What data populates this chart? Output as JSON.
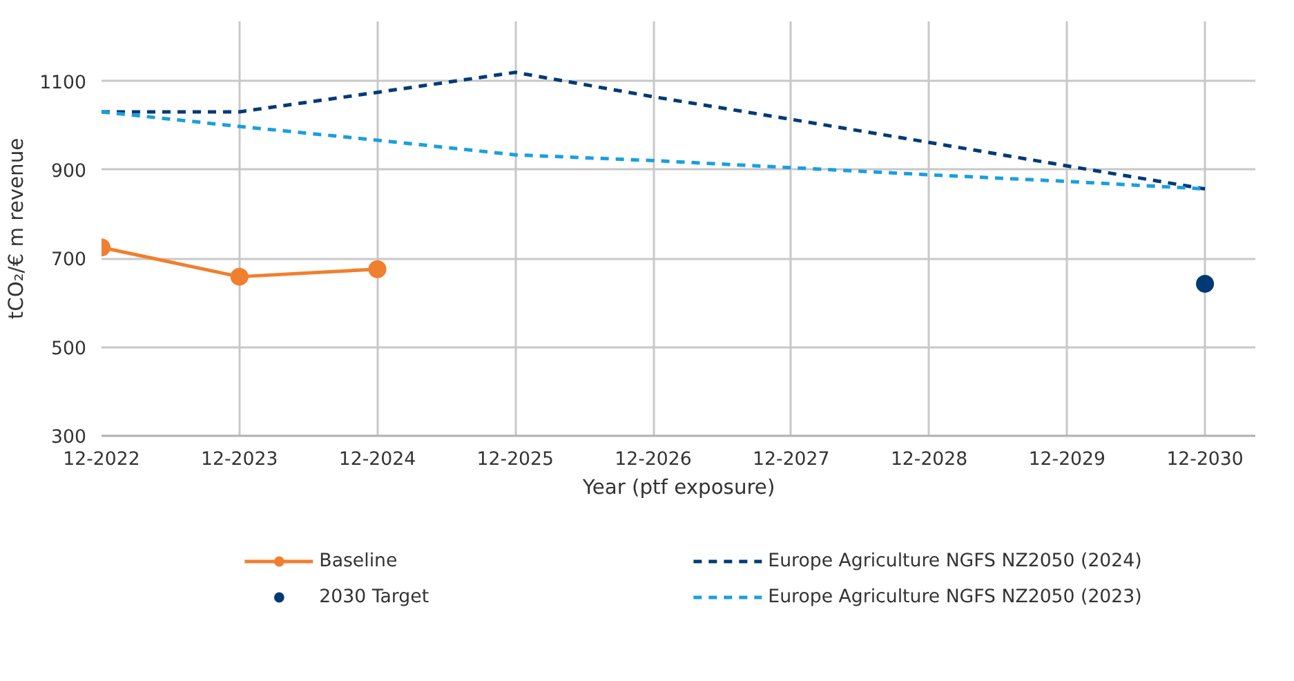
{
  "chart_data": {
    "type": "line",
    "xlabel": "Year (ptf exposure)",
    "ylabel": "tCO₂/€ m revenue",
    "categories": [
      "12-2022",
      "12-2023",
      "12-2024",
      "12-2025",
      "12-2026",
      "12-2027",
      "12-2028",
      "12-2029",
      "12-2030"
    ],
    "ylim": [
      300,
      1235
    ],
    "yticks": [
      300,
      500,
      700,
      900,
      1100
    ],
    "grid": true,
    "legend": "bottom",
    "series": [
      {
        "name": "Baseline",
        "marker": "circle",
        "line_style": "solid",
        "color": "#f07f2f",
        "values": [
          725,
          659,
          676,
          null,
          null,
          null,
          null,
          null,
          null
        ]
      },
      {
        "name": "2030 Target",
        "type": "scatter",
        "marker": "circle",
        "color": "#003a75",
        "values": [
          null,
          null,
          null,
          null,
          null,
          null,
          null,
          null,
          643
        ]
      },
      {
        "name": "Europe Agriculture NGFS NZ2050 (2024)",
        "marker": "none",
        "line_style": "dashed",
        "color": "#003a75",
        "values": [
          1031,
          1031,
          1075,
          1120,
          1065,
          1014,
          962,
          909,
          857
        ]
      },
      {
        "name": "Europe Agriculture NGFS NZ2050 (2023)",
        "marker": "none",
        "line_style": "dashed",
        "color": "#1a9fe0",
        "values": [
          1031,
          998,
          967,
          934,
          921,
          905,
          889,
          874,
          857
        ]
      }
    ]
  }
}
